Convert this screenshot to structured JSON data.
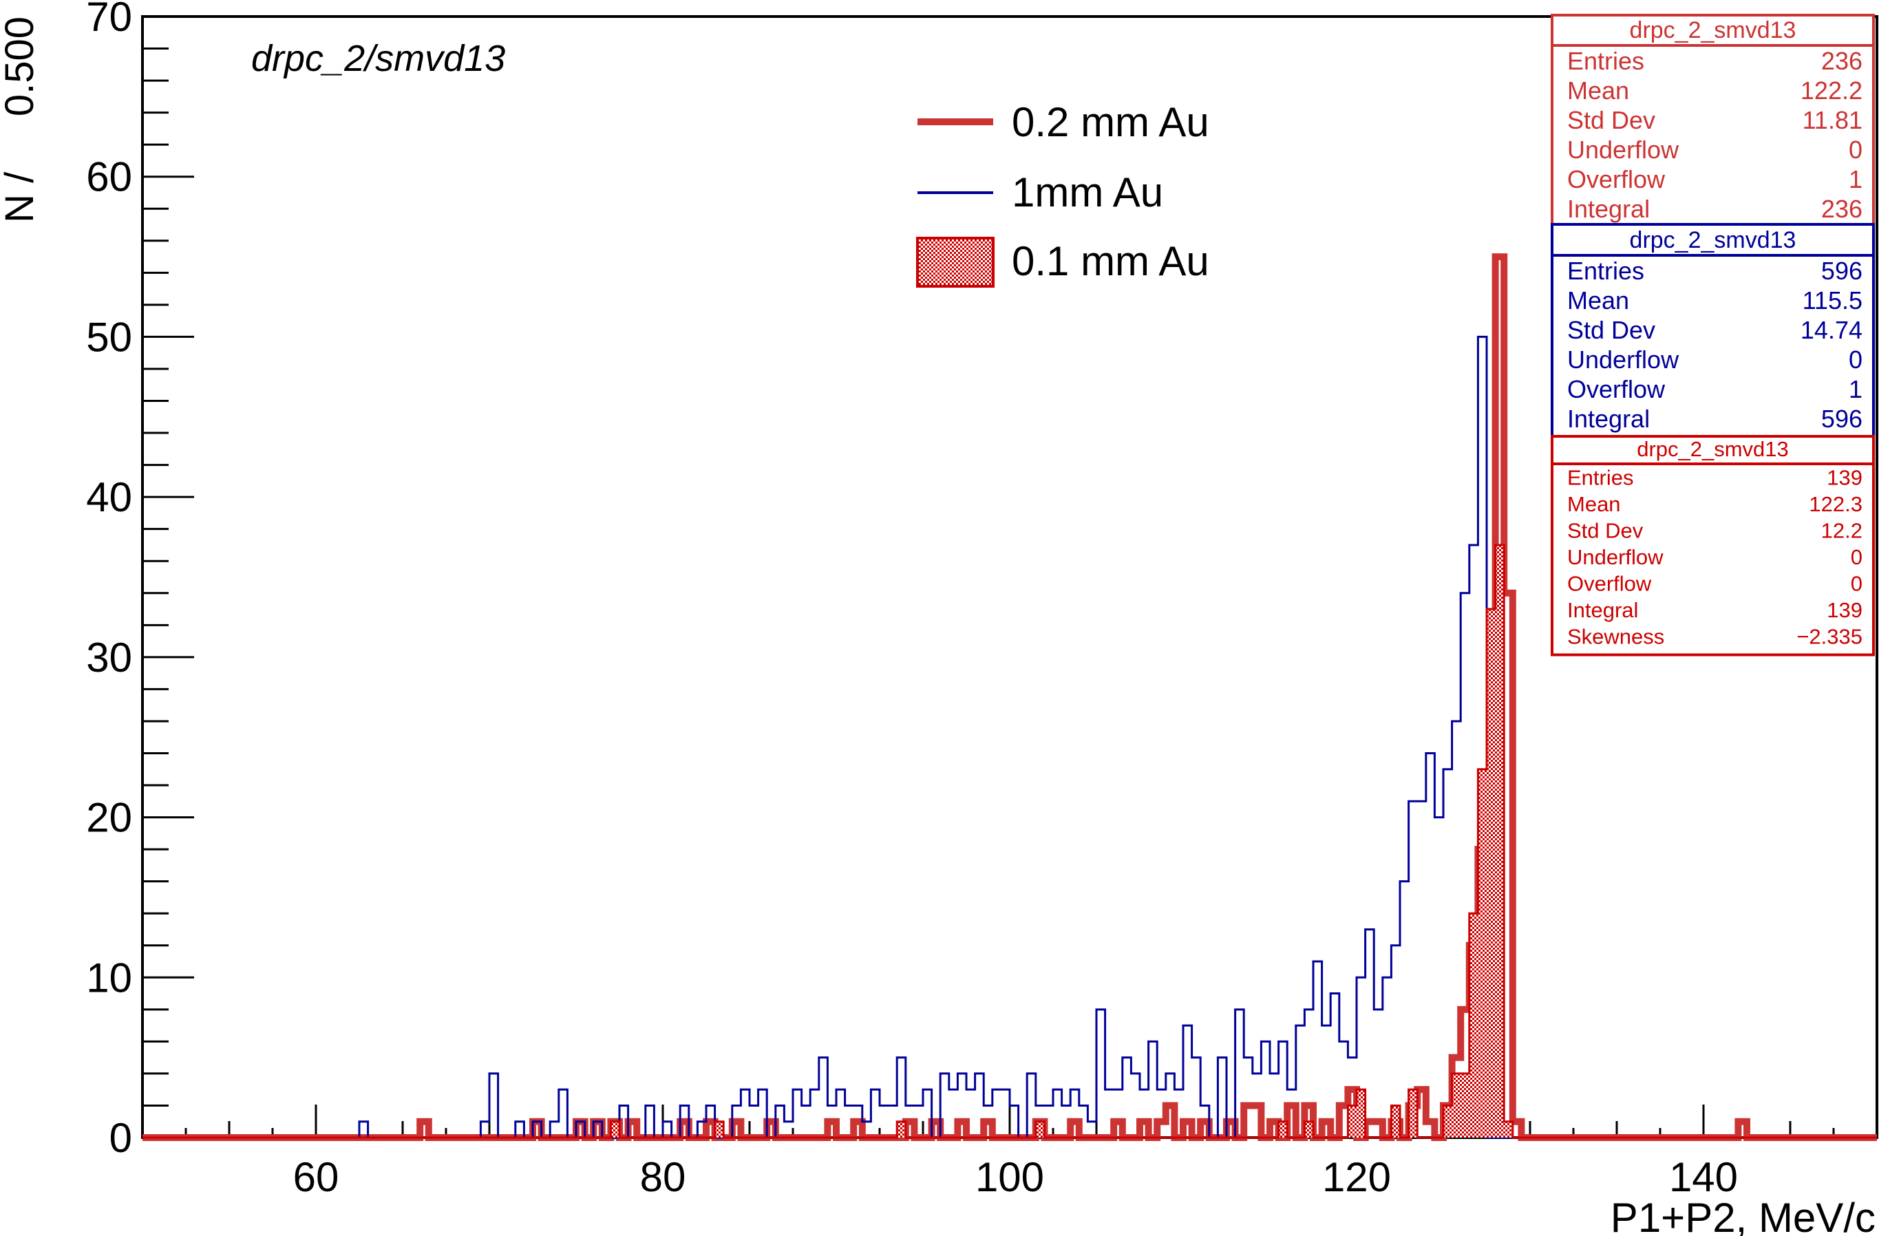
{
  "chart_data": {
    "type": "histogram",
    "title": "drpc_2/smvd13",
    "xlabel": "P1+P2, MeV/c",
    "ylabel": "N /     0.500",
    "xlim": [
      50,
      150
    ],
    "ylim": [
      0,
      70
    ],
    "bin_width": 0.5,
    "x_ticks": [
      60,
      80,
      100,
      120,
      140
    ],
    "y_ticks": [
      0,
      10,
      20,
      30,
      40,
      50,
      60,
      70
    ],
    "grid": false,
    "legend_position": "top-center",
    "legend": [
      {
        "label": "0.2 mm Au",
        "style": "thick-line",
        "color": "#cc3333"
      },
      {
        "label": "1mm Au",
        "style": "thin-line",
        "color": "#000099"
      },
      {
        "label": "0.1 mm Au",
        "style": "hatched-fill",
        "color": "#cc0000"
      }
    ],
    "series": [
      {
        "label": "0.2 mm Au",
        "color": "#cc3333",
        "line_width": 10,
        "bins": [
          [
            66,
            1
          ],
          [
            72.5,
            1
          ],
          [
            75,
            1
          ],
          [
            76,
            1
          ],
          [
            77,
            1
          ],
          [
            78,
            1
          ],
          [
            81,
            1
          ],
          [
            82.5,
            1
          ],
          [
            84,
            1
          ],
          [
            86,
            1
          ],
          [
            89.5,
            1
          ],
          [
            91,
            1
          ],
          [
            94,
            1
          ],
          [
            95.5,
            1
          ],
          [
            97,
            1
          ],
          [
            98.5,
            1
          ],
          [
            101.5,
            1
          ],
          [
            103.5,
            1
          ],
          [
            106,
            1
          ],
          [
            107.5,
            1
          ],
          [
            108.5,
            1
          ],
          [
            109,
            2
          ],
          [
            110,
            1
          ],
          [
            111,
            1
          ],
          [
            112.5,
            1
          ],
          [
            113.5,
            2
          ],
          [
            114,
            2
          ],
          [
            115,
            1
          ],
          [
            116,
            2
          ],
          [
            117,
            2
          ],
          [
            118,
            1
          ],
          [
            119,
            2
          ],
          [
            119.5,
            3
          ],
          [
            120.5,
            1
          ],
          [
            121,
            1
          ],
          [
            122,
            1
          ],
          [
            123,
            2
          ],
          [
            123.5,
            3
          ],
          [
            124,
            1
          ],
          [
            125,
            2
          ],
          [
            125.5,
            5
          ],
          [
            126,
            8
          ],
          [
            126.5,
            12
          ],
          [
            127,
            18
          ],
          [
            127.5,
            22
          ],
          [
            128,
            55
          ],
          [
            128.5,
            34
          ],
          [
            129,
            1
          ],
          [
            142,
            1
          ],
          [
            150,
            1
          ]
        ]
      },
      {
        "label": "1mm Au",
        "color": "#000099",
        "line_width": 3,
        "bins": [
          [
            62.5,
            1
          ],
          [
            69.5,
            1
          ],
          [
            70,
            4
          ],
          [
            71.5,
            1
          ],
          [
            72.5,
            1
          ],
          [
            73.5,
            1
          ],
          [
            74,
            3
          ],
          [
            75,
            1
          ],
          [
            76,
            1
          ],
          [
            77.5,
            2
          ],
          [
            79,
            2
          ],
          [
            80,
            1
          ],
          [
            81,
            2
          ],
          [
            82,
            1
          ],
          [
            82.5,
            2
          ],
          [
            84,
            2
          ],
          [
            84.5,
            3
          ],
          [
            85,
            2
          ],
          [
            85.5,
            3
          ],
          [
            86.5,
            2
          ],
          [
            87,
            1
          ],
          [
            87.5,
            3
          ],
          [
            88,
            2
          ],
          [
            88.5,
            3
          ],
          [
            89,
            5
          ],
          [
            89.5,
            2
          ],
          [
            90,
            3
          ],
          [
            90.5,
            2
          ],
          [
            91,
            2
          ],
          [
            91.5,
            1
          ],
          [
            92,
            3
          ],
          [
            92.5,
            2
          ],
          [
            93,
            2
          ],
          [
            93.5,
            5
          ],
          [
            94,
            2
          ],
          [
            94.5,
            2
          ],
          [
            95,
            3
          ],
          [
            96,
            4
          ],
          [
            96.5,
            3
          ],
          [
            97,
            4
          ],
          [
            97.5,
            3
          ],
          [
            98,
            4
          ],
          [
            98.5,
            2
          ],
          [
            99,
            3
          ],
          [
            99.5,
            3
          ],
          [
            100,
            2
          ],
          [
            101,
            4
          ],
          [
            101.5,
            2
          ],
          [
            102,
            2
          ],
          [
            102.5,
            3
          ],
          [
            103,
            2
          ],
          [
            103.5,
            3
          ],
          [
            104,
            2
          ],
          [
            104.5,
            1
          ],
          [
            105,
            8
          ],
          [
            105.5,
            3
          ],
          [
            106,
            3
          ],
          [
            106.5,
            5
          ],
          [
            107,
            4
          ],
          [
            107.5,
            3
          ],
          [
            108,
            6
          ],
          [
            108.5,
            3
          ],
          [
            109,
            4
          ],
          [
            109.5,
            3
          ],
          [
            110,
            7
          ],
          [
            110.5,
            5
          ],
          [
            111,
            2
          ],
          [
            112,
            5
          ],
          [
            113,
            8
          ],
          [
            113.5,
            5
          ],
          [
            114,
            4
          ],
          [
            114.5,
            6
          ],
          [
            115,
            4
          ],
          [
            115.5,
            6
          ],
          [
            116,
            3
          ],
          [
            116.5,
            7
          ],
          [
            117,
            8
          ],
          [
            117.5,
            11
          ],
          [
            118,
            7
          ],
          [
            118.5,
            9
          ],
          [
            119,
            6
          ],
          [
            119.5,
            5
          ],
          [
            120,
            10
          ],
          [
            120.5,
            13
          ],
          [
            121,
            8
          ],
          [
            121.5,
            10
          ],
          [
            122,
            12
          ],
          [
            122.5,
            16
          ],
          [
            123,
            21
          ],
          [
            123.5,
            21
          ],
          [
            124,
            24
          ],
          [
            124.5,
            20
          ],
          [
            125,
            23
          ],
          [
            125.5,
            26
          ],
          [
            126,
            34
          ],
          [
            126.5,
            37
          ],
          [
            127,
            50
          ],
          [
            127.5,
            0
          ],
          [
            150,
            1
          ]
        ]
      },
      {
        "label": "0.1 mm Au",
        "color": "#cc0000",
        "line_width": 3,
        "hatched": true,
        "bins": [
          [
            77,
            1
          ],
          [
            83,
            1
          ],
          [
            93.5,
            1
          ],
          [
            101.5,
            1
          ],
          [
            115.5,
            1
          ],
          [
            117,
            1
          ],
          [
            119.5,
            2
          ],
          [
            120,
            3
          ],
          [
            122,
            2
          ],
          [
            123,
            3
          ],
          [
            125,
            2
          ],
          [
            125.5,
            4
          ],
          [
            126,
            4
          ],
          [
            126.5,
            14
          ],
          [
            127,
            23
          ],
          [
            127.5,
            33
          ],
          [
            128,
            37
          ],
          [
            128.5,
            1
          ]
        ]
      }
    ],
    "stats_boxes": [
      {
        "title": "drpc_2_smvd13",
        "color": "#cc3333",
        "rows": [
          [
            "Entries",
            "236"
          ],
          [
            "Mean",
            "122.2"
          ],
          [
            "Std Dev",
            "11.81"
          ],
          [
            "Underflow",
            "0"
          ],
          [
            "Overflow",
            "1"
          ],
          [
            "Integral",
            "236"
          ]
        ]
      },
      {
        "title": "drpc_2_smvd13",
        "color": "#000099",
        "rows": [
          [
            "Entries",
            "596"
          ],
          [
            "Mean",
            "115.5"
          ],
          [
            "Std Dev",
            "14.74"
          ],
          [
            "Underflow",
            "0"
          ],
          [
            "Overflow",
            "1"
          ],
          [
            "Integral",
            "596"
          ]
        ]
      },
      {
        "title": "drpc_2_smvd13",
        "color": "#cc0000",
        "rows": [
          [
            "Entries",
            "139"
          ],
          [
            "Mean",
            "122.3"
          ],
          [
            "Std Dev",
            "12.2"
          ],
          [
            "Underflow",
            "0"
          ],
          [
            "Overflow",
            "0"
          ],
          [
            "Integral",
            "139"
          ],
          [
            "Skewness",
            "−2.335"
          ]
        ]
      }
    ]
  }
}
